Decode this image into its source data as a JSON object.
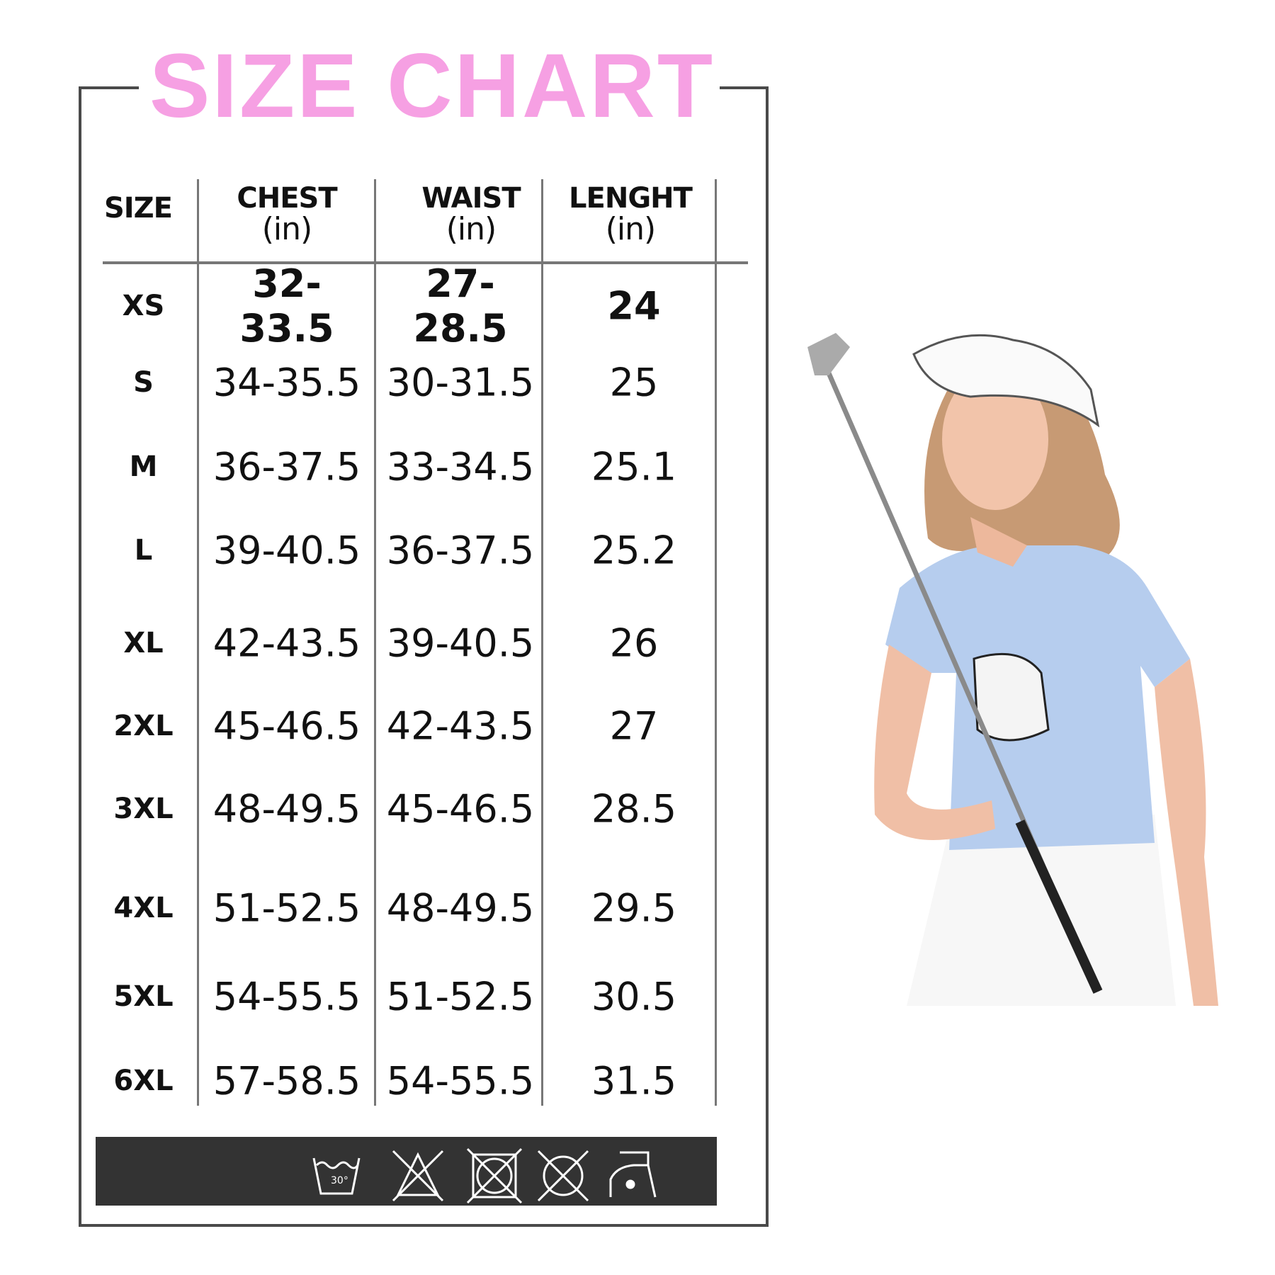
{
  "title": "SIZE CHART",
  "colors": {
    "title": "#f6a0e3",
    "frame": "#4a4a4a",
    "care_bar": "#333333"
  },
  "headers": [
    {
      "label": "SIZE",
      "unit": ""
    },
    {
      "label": "CHEST",
      "unit": "(in)"
    },
    {
      "label": "WAIST",
      "unit": "(in)"
    },
    {
      "label": "LENGHT",
      "unit": "(in)"
    }
  ],
  "rows": [
    {
      "size": "XS",
      "chest": "32-33.5",
      "waist": "27-28.5",
      "length": "24"
    },
    {
      "size": "S",
      "chest": "34-35.5",
      "waist": "30-31.5",
      "length": "25"
    },
    {
      "size": "M",
      "chest": "36-37.5",
      "waist": "33-34.5",
      "length": "25.1"
    },
    {
      "size": "L",
      "chest": "39-40.5",
      "waist": "36-37.5",
      "length": "25.2"
    },
    {
      "size": "XL",
      "chest": "42-43.5",
      "waist": "39-40.5",
      "length": "26"
    },
    {
      "size": "2XL",
      "chest": "45-46.5",
      "waist": "42-43.5",
      "length": "27"
    },
    {
      "size": "3XL",
      "chest": "48-49.5",
      "waist": "45-46.5",
      "length": "28.5"
    },
    {
      "size": "4XL",
      "chest": "51-52.5",
      "waist": "48-49.5",
      "length": "29.5"
    },
    {
      "size": "5XL",
      "chest": "54-55.5",
      "waist": "51-52.5",
      "length": "30.5"
    },
    {
      "size": "6XL",
      "chest": "57-58.5",
      "waist": "54-55.5",
      "length": "31.5"
    }
  ],
  "care_icons": [
    "wash-30-icon",
    "no-bleach-icon",
    "no-tumble-dry-icon",
    "no-dry-clean-icon",
    "iron-low-icon"
  ],
  "care_wash_temp": "30°",
  "photo": "woman-golfer-photo"
}
